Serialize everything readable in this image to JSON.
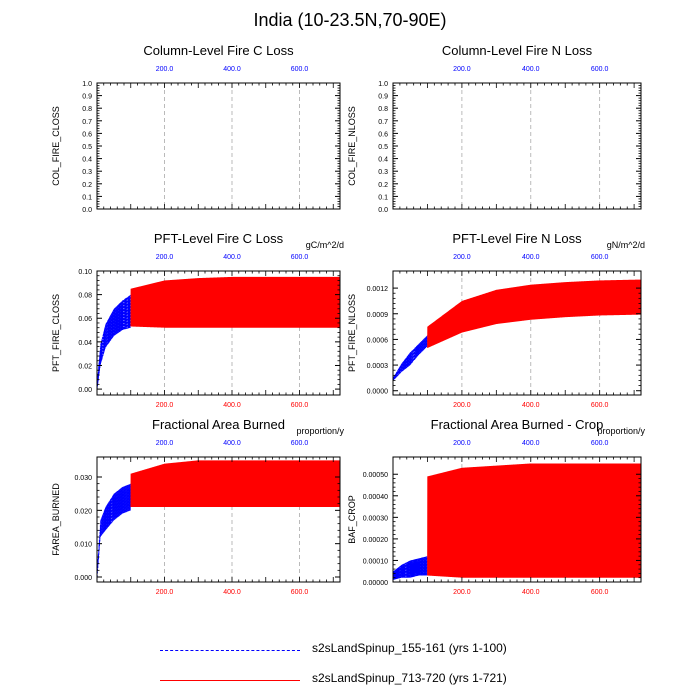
{
  "title": "India (10-23.5N,70-90E)",
  "colors": {
    "blue": "#0000ff",
    "red": "#ff0000",
    "grid": "#aaaaaa"
  },
  "legend": [
    {
      "label": "s2sLandSpinup_155-161 (yrs 1-100)",
      "color": "#0000ff",
      "style": "dashed"
    },
    {
      "label": "s2sLandSpinup_713-720 (yrs 1-721)",
      "color": "#ff0000",
      "style": "solid"
    }
  ],
  "chart_data": [
    {
      "type": "line",
      "title": "Column-Level Fire C Loss",
      "ylabel": "COL_FIRE_CLOSS",
      "units": "",
      "xlim": [
        0,
        720
      ],
      "ylim": [
        0,
        1.0
      ],
      "yticks": [
        "0.0",
        "0.1",
        "0.2",
        "0.3",
        "0.4",
        "0.5",
        "0.6",
        "0.7",
        "0.8",
        "0.9",
        "1.0"
      ],
      "top_xticks": [
        "200.0",
        "400.0",
        "600.0"
      ],
      "bottom_xticks": [],
      "series": []
    },
    {
      "type": "line",
      "title": "Column-Level Fire N Loss",
      "ylabel": "COL_FIRE_NLOSS",
      "units": "",
      "xlim": [
        0,
        720
      ],
      "ylim": [
        0,
        1.0
      ],
      "yticks": [
        "0.0",
        "0.1",
        "0.2",
        "0.3",
        "0.4",
        "0.5",
        "0.6",
        "0.7",
        "0.8",
        "0.9",
        "1.0"
      ],
      "top_xticks": [
        "200.0",
        "400.0",
        "600.0"
      ],
      "bottom_xticks": [],
      "series": []
    },
    {
      "type": "line",
      "title": "PFT-Level Fire C Loss",
      "ylabel": "PFT_FIRE_CLOSS",
      "units": "gC/m^2/d",
      "xlim": [
        0,
        720
      ],
      "ylim": [
        -0.005,
        0.1
      ],
      "yticks": [
        "0.00",
        "0.02",
        "0.04",
        "0.06",
        "0.08",
        "0.10"
      ],
      "top_xticks": [
        "200.0",
        "400.0",
        "600.0"
      ],
      "bottom_xticks": [
        "200.0",
        "400.0",
        "600.0"
      ],
      "series": [
        {
          "color": "#0000ff",
          "x_range": [
            1,
            100
          ],
          "envelope_x": [
            1,
            10,
            25,
            50,
            75,
            100
          ],
          "min": [
            0.0,
            0.02,
            0.035,
            0.045,
            0.05,
            0.052
          ],
          "max": [
            0.01,
            0.038,
            0.055,
            0.068,
            0.075,
            0.08
          ]
        },
        {
          "color": "#ff0000",
          "x_range": [
            100,
            721
          ],
          "envelope_x": [
            100,
            200,
            300,
            400,
            500,
            600,
            721
          ],
          "min": [
            0.053,
            0.052,
            0.052,
            0.052,
            0.052,
            0.052,
            0.052
          ],
          "max": [
            0.085,
            0.092,
            0.094,
            0.095,
            0.095,
            0.095,
            0.095
          ]
        }
      ]
    },
    {
      "type": "line",
      "title": "PFT-Level Fire N Loss",
      "ylabel": "PFT_FIRE_NLOSS",
      "units": "gN/m^2/d",
      "xlim": [
        0,
        720
      ],
      "ylim": [
        -5e-05,
        0.0014
      ],
      "yticks": [
        "0.0000",
        "0.0003",
        "0.0006",
        "0.0009",
        "0.0012"
      ],
      "top_xticks": [
        "200.0",
        "400.0",
        "600.0"
      ],
      "bottom_xticks": [
        "200.0",
        "400.0",
        "600.0"
      ],
      "series": [
        {
          "color": "#0000ff",
          "x_range": [
            1,
            100
          ],
          "envelope_x": [
            1,
            25,
            50,
            75,
            100
          ],
          "min": [
            0.00012,
            0.00022,
            0.0003,
            0.00042,
            0.00052
          ],
          "max": [
            0.00016,
            0.00032,
            0.00045,
            0.00055,
            0.00065
          ]
        },
        {
          "color": "#ff0000",
          "x_range": [
            100,
            721
          ],
          "envelope_x": [
            100,
            200,
            300,
            400,
            500,
            600,
            721
          ],
          "min": [
            0.0005,
            0.00068,
            0.00078,
            0.00083,
            0.00086,
            0.00088,
            0.00089
          ],
          "max": [
            0.00075,
            0.00105,
            0.00118,
            0.00124,
            0.00127,
            0.00129,
            0.0013
          ]
        }
      ]
    },
    {
      "type": "line",
      "title": "Fractional Area Burned",
      "ylabel": "FAREA_BURNED",
      "units": "proportion/y",
      "xlim": [
        0,
        720
      ],
      "ylim": [
        -0.0015,
        0.036
      ],
      "yticks": [
        "0.000",
        "0.010",
        "0.020",
        "0.030"
      ],
      "top_xticks": [
        "200.0",
        "400.0",
        "600.0"
      ],
      "bottom_xticks": [
        "200.0",
        "400.0",
        "600.0"
      ],
      "series": [
        {
          "color": "#0000ff",
          "x_range": [
            1,
            100
          ],
          "envelope_x": [
            1,
            10,
            25,
            50,
            75,
            100
          ],
          "min": [
            0.0,
            0.012,
            0.014,
            0.017,
            0.019,
            0.02
          ],
          "max": [
            0.004,
            0.017,
            0.021,
            0.025,
            0.027,
            0.028
          ]
        },
        {
          "color": "#ff0000",
          "x_range": [
            100,
            721
          ],
          "envelope_x": [
            100,
            200,
            300,
            400,
            500,
            600,
            721
          ],
          "min": [
            0.021,
            0.021,
            0.021,
            0.021,
            0.021,
            0.021,
            0.021
          ],
          "max": [
            0.031,
            0.034,
            0.035,
            0.035,
            0.035,
            0.035,
            0.035
          ]
        }
      ]
    },
    {
      "type": "line",
      "title": "Fractional Area Burned - Crop",
      "ylabel": "BAF_CROP",
      "units": "proportion/y",
      "xlim": [
        0,
        720
      ],
      "ylim": [
        0,
        0.00058
      ],
      "yticks": [
        "0.00000",
        "0.00010",
        "0.00020",
        "0.00030",
        "0.00040",
        "0.00050"
      ],
      "top_xticks": [
        "200.0",
        "400.0",
        "600.0"
      ],
      "bottom_xticks": [
        "200.0",
        "400.0",
        "600.0"
      ],
      "series": [
        {
          "color": "#0000ff",
          "x_range": [
            1,
            100
          ],
          "envelope_x": [
            1,
            25,
            50,
            75,
            100
          ],
          "min": [
            1e-05,
            2e-05,
            2e-05,
            3e-05,
            3e-05
          ],
          "max": [
            5e-05,
            8e-05,
            0.0001,
            0.00011,
            0.00012
          ]
        },
        {
          "color": "#ff0000",
          "x_range": [
            100,
            721
          ],
          "envelope_x": [
            100,
            200,
            300,
            400,
            500,
            600,
            721
          ],
          "min": [
            3e-05,
            2e-05,
            2e-05,
            2e-05,
            2e-05,
            2e-05,
            2e-05
          ],
          "max": [
            0.00049,
            0.00053,
            0.00054,
            0.00055,
            0.00055,
            0.00055,
            0.00055
          ]
        }
      ]
    }
  ]
}
